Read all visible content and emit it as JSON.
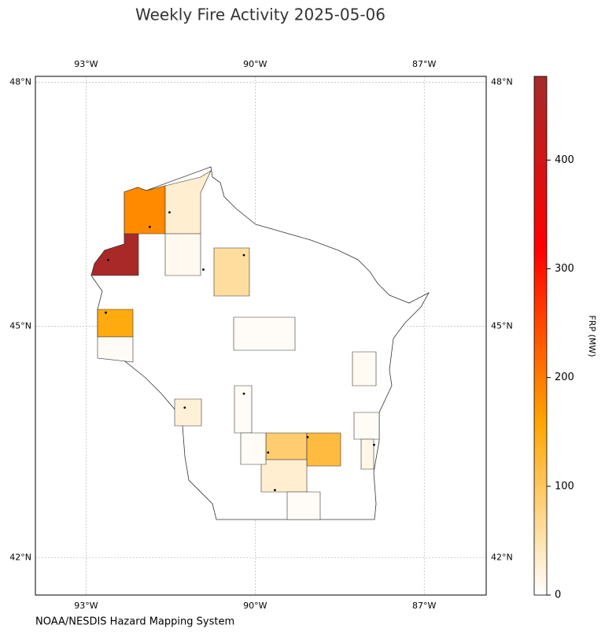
{
  "chart_data": {
    "type": "choropleth",
    "title": "Weekly Fire Activity 2025-05-06",
    "source": "NOAA/NESDIS Hazard Mapping System",
    "xlim": [
      -93.9,
      -85.9
    ],
    "ylim": [
      41.5,
      48.07
    ],
    "xticks": [
      {
        "value": -93,
        "label": "93°W"
      },
      {
        "value": -90,
        "label": "90°W"
      },
      {
        "value": -87,
        "label": "87°W"
      }
    ],
    "yticks": [
      {
        "value": 42,
        "label": "42°N"
      },
      {
        "value": 45,
        "label": "45°N"
      },
      {
        "value": 48,
        "label": "48°N"
      }
    ],
    "grid": true,
    "colorbar": {
      "label": "FRP (MW)",
      "lim": [
        0,
        477
      ],
      "ticks": [
        0,
        100,
        200,
        300,
        400
      ],
      "colormap": [
        "#ffffff",
        "#ffa500",
        "#ff0000",
        "#a52a2a"
      ]
    },
    "regions": {
      "values": [
        185,
        30,
        470,
        10,
        60,
        150,
        5,
        5,
        8,
        25,
        5,
        90,
        120,
        30,
        5,
        5,
        15,
        5
      ]
    },
    "fires": {
      "x": [
        -91.87,
        -92.61,
        -91.52,
        -90.2,
        -90.92,
        -92.65,
        -89.77,
        -89.07,
        -89.65,
        -90.2,
        -87.89,
        -91.25
      ],
      "y": [
        46.24,
        45.83,
        46.42,
        45.89,
        45.71,
        45.17,
        43.38,
        43.58,
        42.89,
        44.14,
        43.48,
        43.96
      ]
    }
  }
}
